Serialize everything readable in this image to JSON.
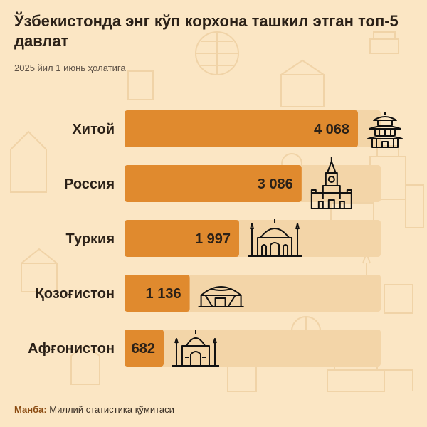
{
  "title": "Ўзбекистонда энг кўп корхона ташкил этган топ-5 давлат",
  "subtitle": "2025 йил 1 июнь ҳолатига",
  "source": {
    "label": "Манба:",
    "text": "Миллий статистика қўмитаси"
  },
  "colors": {
    "background": "#fbe6c4",
    "bar": "#e08a2e",
    "bar_track": "#f3d5a8",
    "text": "#2b2118"
  },
  "chart_data": {
    "type": "bar",
    "orientation": "horizontal",
    "categories": [
      "Хитой",
      "Россия",
      "Туркия",
      "Қозоғистон",
      "Афғонистон"
    ],
    "values": [
      4068,
      3086,
      1997,
      1136,
      682
    ],
    "value_labels": [
      "4 068",
      "3 086",
      "1 997",
      "1 136",
      "682"
    ],
    "icons": [
      "pagoda-icon",
      "kremlin-tower-icon",
      "mosque-icon",
      "yurt-icon",
      "taj-mahal-icon"
    ],
    "title": "Ўзбекистонда энг кўп корхона ташкил этган топ-5 давлат",
    "xlabel": "",
    "ylabel": "",
    "xlim": [
      0,
      4068
    ],
    "grid": false,
    "legend": "none"
  }
}
